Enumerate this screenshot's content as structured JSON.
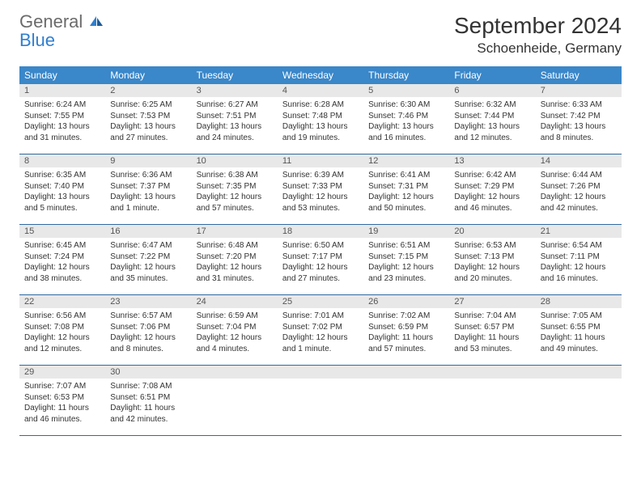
{
  "logo": {
    "general": "General",
    "blue": "Blue"
  },
  "title": "September 2024",
  "location": "Schoenheide, Germany",
  "colors": {
    "header_bg": "#3a87c9",
    "header_text": "#ffffff",
    "daynum_bg": "#e8e8e8",
    "daynum_text": "#555555",
    "border": "#2f6aa0",
    "body_text": "#333333",
    "logo_gray": "#6b6b6b",
    "logo_blue": "#2f7fcf"
  },
  "typography": {
    "title_fontsize": 28,
    "location_fontsize": 17,
    "dayheader_fontsize": 12,
    "cell_fontsize": 10,
    "daynum_fontsize": 11
  },
  "layout": {
    "columns": 7,
    "rows": 5,
    "cell_min_height": 86
  },
  "day_names": [
    "Sunday",
    "Monday",
    "Tuesday",
    "Wednesday",
    "Thursday",
    "Friday",
    "Saturday"
  ],
  "days": [
    {
      "n": "1",
      "sunrise": "Sunrise: 6:24 AM",
      "sunset": "Sunset: 7:55 PM",
      "dl1": "Daylight: 13 hours",
      "dl2": "and 31 minutes."
    },
    {
      "n": "2",
      "sunrise": "Sunrise: 6:25 AM",
      "sunset": "Sunset: 7:53 PM",
      "dl1": "Daylight: 13 hours",
      "dl2": "and 27 minutes."
    },
    {
      "n": "3",
      "sunrise": "Sunrise: 6:27 AM",
      "sunset": "Sunset: 7:51 PM",
      "dl1": "Daylight: 13 hours",
      "dl2": "and 24 minutes."
    },
    {
      "n": "4",
      "sunrise": "Sunrise: 6:28 AM",
      "sunset": "Sunset: 7:48 PM",
      "dl1": "Daylight: 13 hours",
      "dl2": "and 19 minutes."
    },
    {
      "n": "5",
      "sunrise": "Sunrise: 6:30 AM",
      "sunset": "Sunset: 7:46 PM",
      "dl1": "Daylight: 13 hours",
      "dl2": "and 16 minutes."
    },
    {
      "n": "6",
      "sunrise": "Sunrise: 6:32 AM",
      "sunset": "Sunset: 7:44 PM",
      "dl1": "Daylight: 13 hours",
      "dl2": "and 12 minutes."
    },
    {
      "n": "7",
      "sunrise": "Sunrise: 6:33 AM",
      "sunset": "Sunset: 7:42 PM",
      "dl1": "Daylight: 13 hours",
      "dl2": "and 8 minutes."
    },
    {
      "n": "8",
      "sunrise": "Sunrise: 6:35 AM",
      "sunset": "Sunset: 7:40 PM",
      "dl1": "Daylight: 13 hours",
      "dl2": "and 5 minutes."
    },
    {
      "n": "9",
      "sunrise": "Sunrise: 6:36 AM",
      "sunset": "Sunset: 7:37 PM",
      "dl1": "Daylight: 13 hours",
      "dl2": "and 1 minute."
    },
    {
      "n": "10",
      "sunrise": "Sunrise: 6:38 AM",
      "sunset": "Sunset: 7:35 PM",
      "dl1": "Daylight: 12 hours",
      "dl2": "and 57 minutes."
    },
    {
      "n": "11",
      "sunrise": "Sunrise: 6:39 AM",
      "sunset": "Sunset: 7:33 PM",
      "dl1": "Daylight: 12 hours",
      "dl2": "and 53 minutes."
    },
    {
      "n": "12",
      "sunrise": "Sunrise: 6:41 AM",
      "sunset": "Sunset: 7:31 PM",
      "dl1": "Daylight: 12 hours",
      "dl2": "and 50 minutes."
    },
    {
      "n": "13",
      "sunrise": "Sunrise: 6:42 AM",
      "sunset": "Sunset: 7:29 PM",
      "dl1": "Daylight: 12 hours",
      "dl2": "and 46 minutes."
    },
    {
      "n": "14",
      "sunrise": "Sunrise: 6:44 AM",
      "sunset": "Sunset: 7:26 PM",
      "dl1": "Daylight: 12 hours",
      "dl2": "and 42 minutes."
    },
    {
      "n": "15",
      "sunrise": "Sunrise: 6:45 AM",
      "sunset": "Sunset: 7:24 PM",
      "dl1": "Daylight: 12 hours",
      "dl2": "and 38 minutes."
    },
    {
      "n": "16",
      "sunrise": "Sunrise: 6:47 AM",
      "sunset": "Sunset: 7:22 PM",
      "dl1": "Daylight: 12 hours",
      "dl2": "and 35 minutes."
    },
    {
      "n": "17",
      "sunrise": "Sunrise: 6:48 AM",
      "sunset": "Sunset: 7:20 PM",
      "dl1": "Daylight: 12 hours",
      "dl2": "and 31 minutes."
    },
    {
      "n": "18",
      "sunrise": "Sunrise: 6:50 AM",
      "sunset": "Sunset: 7:17 PM",
      "dl1": "Daylight: 12 hours",
      "dl2": "and 27 minutes."
    },
    {
      "n": "19",
      "sunrise": "Sunrise: 6:51 AM",
      "sunset": "Sunset: 7:15 PM",
      "dl1": "Daylight: 12 hours",
      "dl2": "and 23 minutes."
    },
    {
      "n": "20",
      "sunrise": "Sunrise: 6:53 AM",
      "sunset": "Sunset: 7:13 PM",
      "dl1": "Daylight: 12 hours",
      "dl2": "and 20 minutes."
    },
    {
      "n": "21",
      "sunrise": "Sunrise: 6:54 AM",
      "sunset": "Sunset: 7:11 PM",
      "dl1": "Daylight: 12 hours",
      "dl2": "and 16 minutes."
    },
    {
      "n": "22",
      "sunrise": "Sunrise: 6:56 AM",
      "sunset": "Sunset: 7:08 PM",
      "dl1": "Daylight: 12 hours",
      "dl2": "and 12 minutes."
    },
    {
      "n": "23",
      "sunrise": "Sunrise: 6:57 AM",
      "sunset": "Sunset: 7:06 PM",
      "dl1": "Daylight: 12 hours",
      "dl2": "and 8 minutes."
    },
    {
      "n": "24",
      "sunrise": "Sunrise: 6:59 AM",
      "sunset": "Sunset: 7:04 PM",
      "dl1": "Daylight: 12 hours",
      "dl2": "and 4 minutes."
    },
    {
      "n": "25",
      "sunrise": "Sunrise: 7:01 AM",
      "sunset": "Sunset: 7:02 PM",
      "dl1": "Daylight: 12 hours",
      "dl2": "and 1 minute."
    },
    {
      "n": "26",
      "sunrise": "Sunrise: 7:02 AM",
      "sunset": "Sunset: 6:59 PM",
      "dl1": "Daylight: 11 hours",
      "dl2": "and 57 minutes."
    },
    {
      "n": "27",
      "sunrise": "Sunrise: 7:04 AM",
      "sunset": "Sunset: 6:57 PM",
      "dl1": "Daylight: 11 hours",
      "dl2": "and 53 minutes."
    },
    {
      "n": "28",
      "sunrise": "Sunrise: 7:05 AM",
      "sunset": "Sunset: 6:55 PM",
      "dl1": "Daylight: 11 hours",
      "dl2": "and 49 minutes."
    },
    {
      "n": "29",
      "sunrise": "Sunrise: 7:07 AM",
      "sunset": "Sunset: 6:53 PM",
      "dl1": "Daylight: 11 hours",
      "dl2": "and 46 minutes."
    },
    {
      "n": "30",
      "sunrise": "Sunrise: 7:08 AM",
      "sunset": "Sunset: 6:51 PM",
      "dl1": "Daylight: 11 hours",
      "dl2": "and 42 minutes."
    }
  ]
}
